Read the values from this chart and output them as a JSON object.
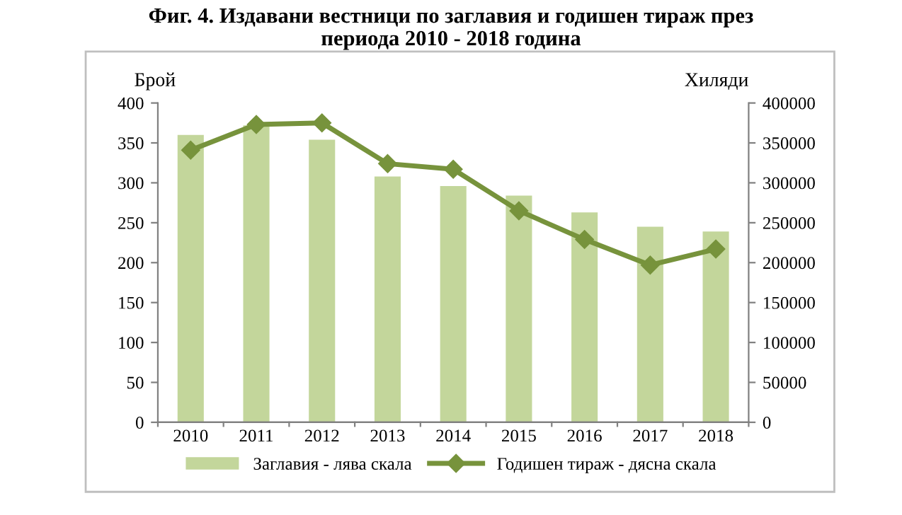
{
  "chart_data": {
    "type": "bar",
    "title": "Фиг. 4. Издавани вестници по заглавия и годишен тираж през\nпериода 2010 - 2018 година",
    "categories": [
      "2010",
      "2011",
      "2012",
      "2013",
      "2014",
      "2015",
      "2016",
      "2017",
      "2018"
    ],
    "ylabel": "Брой",
    "y2label": "Хиляди",
    "series": [
      {
        "name": "Заглавия - лява скала",
        "color": "#c3d69b",
        "values": [
          360,
          372,
          354,
          308,
          296,
          284,
          263,
          245,
          239
        ]
      },
      {
        "name": "Годишен тираж - дясна скала",
        "type": "line",
        "axis": "y2",
        "color": "#77933c",
        "marker": "diamond",
        "values": [
          341000,
          373000,
          375000,
          324000,
          317000,
          265000,
          229000,
          197000,
          217000
        ]
      }
    ],
    "ylim": [
      0,
      400
    ],
    "yticks": [
      0,
      50,
      100,
      150,
      200,
      250,
      300,
      350,
      400
    ],
    "y2lim": [
      0,
      400000
    ],
    "y2ticks": [
      0,
      50000,
      100000,
      150000,
      200000,
      250000,
      300000,
      350000,
      400000
    ],
    "grid": false,
    "legend": "bottom"
  }
}
